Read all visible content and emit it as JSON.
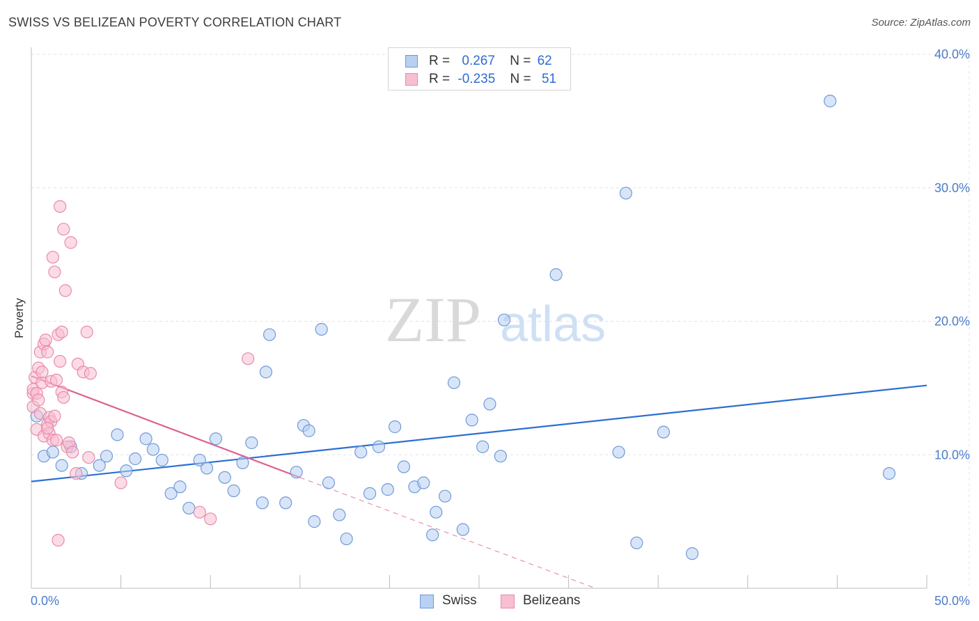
{
  "header": {
    "title": "SWISS VS BELIZEAN POVERTY CORRELATION CHART",
    "source": "Source: ZipAtlas.com"
  },
  "watermark": {
    "part1": "ZIP",
    "part2": "atlas"
  },
  "legend": {
    "swiss": {
      "r_label": "R =",
      "r_value": "0.267",
      "n_label": "N =",
      "n_value": "62"
    },
    "belizeans": {
      "r_label": "R =",
      "r_value": "-0.235",
      "n_label": "N =",
      "n_value": "51"
    }
  },
  "bottom_legend": {
    "swiss": "Swiss",
    "belizeans": "Belizeans"
  },
  "colors": {
    "swiss_fill": "#b8d0f2",
    "swiss_stroke": "#6f9ad8",
    "swiss_line": "#2b6fd1",
    "belize_fill": "#f7bfd1",
    "belize_stroke": "#e98aaa",
    "belize_line": "#e06090",
    "tick_text": "#4a7cc9",
    "grid": "#e3e3e3"
  },
  "chart_data": {
    "type": "scatter",
    "title": "SWISS VS BELIZEAN POVERTY CORRELATION CHART",
    "xlabel": "",
    "ylabel": "Poverty",
    "xlim": [
      0,
      50
    ],
    "ylim": [
      0,
      40
    ],
    "x_tick_labels": [
      "0.0%",
      "50.0%"
    ],
    "y_ticks": [
      {
        "value": 10,
        "label": "10.0%"
      },
      {
        "value": 20,
        "label": "20.0%"
      },
      {
        "value": 30,
        "label": "30.0%"
      },
      {
        "value": 40,
        "label": "40.0%"
      }
    ],
    "grid": true,
    "legend_position": "top-center",
    "series": [
      {
        "name": "Swiss",
        "points": [
          [
            0.3,
            12.9
          ],
          [
            0.7,
            9.9
          ],
          [
            1.2,
            10.2
          ],
          [
            1.7,
            9.2
          ],
          [
            2.2,
            10.6
          ],
          [
            2.8,
            8.6
          ],
          [
            3.8,
            9.2
          ],
          [
            4.2,
            9.9
          ],
          [
            4.8,
            11.5
          ],
          [
            5.3,
            8.8
          ],
          [
            5.8,
            9.7
          ],
          [
            6.4,
            11.2
          ],
          [
            6.8,
            10.4
          ],
          [
            7.3,
            9.6
          ],
          [
            7.8,
            7.1
          ],
          [
            8.3,
            7.6
          ],
          [
            8.8,
            6.0
          ],
          [
            9.4,
            9.6
          ],
          [
            9.8,
            9.0
          ],
          [
            10.3,
            11.2
          ],
          [
            10.8,
            8.3
          ],
          [
            11.3,
            7.3
          ],
          [
            11.8,
            9.4
          ],
          [
            12.3,
            10.9
          ],
          [
            12.9,
            6.4
          ],
          [
            13.1,
            16.2
          ],
          [
            13.3,
            19.0
          ],
          [
            14.2,
            6.4
          ],
          [
            14.8,
            8.7
          ],
          [
            15.2,
            12.2
          ],
          [
            15.5,
            11.8
          ],
          [
            15.8,
            5.0
          ],
          [
            16.2,
            19.4
          ],
          [
            16.6,
            7.9
          ],
          [
            17.2,
            5.5
          ],
          [
            17.6,
            3.7
          ],
          [
            18.4,
            10.2
          ],
          [
            18.9,
            7.1
          ],
          [
            19.4,
            10.6
          ],
          [
            19.9,
            7.4
          ],
          [
            20.3,
            12.1
          ],
          [
            20.8,
            9.1
          ],
          [
            21.4,
            7.6
          ],
          [
            21.9,
            7.9
          ],
          [
            22.4,
            4.0
          ],
          [
            22.6,
            5.7
          ],
          [
            23.1,
            6.9
          ],
          [
            23.6,
            15.4
          ],
          [
            24.1,
            4.4
          ],
          [
            24.6,
            12.6
          ],
          [
            25.2,
            10.6
          ],
          [
            25.6,
            13.8
          ],
          [
            26.2,
            9.9
          ],
          [
            26.4,
            20.1
          ],
          [
            29.3,
            23.5
          ],
          [
            32.8,
            10.2
          ],
          [
            33.2,
            29.6
          ],
          [
            33.8,
            3.4
          ],
          [
            35.3,
            11.7
          ],
          [
            36.9,
            2.6
          ],
          [
            44.6,
            36.5
          ],
          [
            47.9,
            8.6
          ]
        ]
      },
      {
        "name": "Belizeans",
        "points": [
          [
            0.1,
            14.6
          ],
          [
            0.1,
            13.6
          ],
          [
            0.1,
            14.9
          ],
          [
            0.2,
            15.8
          ],
          [
            0.3,
            14.6
          ],
          [
            0.3,
            11.9
          ],
          [
            0.4,
            16.5
          ],
          [
            0.4,
            14.1
          ],
          [
            0.5,
            13.1
          ],
          [
            0.5,
            17.7
          ],
          [
            0.6,
            15.4
          ],
          [
            0.6,
            16.2
          ],
          [
            0.7,
            11.4
          ],
          [
            0.7,
            18.3
          ],
          [
            0.8,
            18.6
          ],
          [
            0.9,
            17.7
          ],
          [
            0.9,
            12.3
          ],
          [
            1.0,
            11.6
          ],
          [
            1.0,
            12.8
          ],
          [
            1.1,
            15.5
          ],
          [
            1.1,
            12.5
          ],
          [
            1.2,
            24.8
          ],
          [
            1.2,
            11.1
          ],
          [
            1.3,
            23.7
          ],
          [
            1.4,
            15.6
          ],
          [
            1.4,
            11.1
          ],
          [
            1.5,
            19.0
          ],
          [
            1.5,
            3.6
          ],
          [
            1.6,
            17.0
          ],
          [
            1.6,
            28.6
          ],
          [
            1.7,
            19.2
          ],
          [
            1.7,
            14.7
          ],
          [
            1.8,
            14.3
          ],
          [
            1.8,
            26.9
          ],
          [
            1.9,
            22.3
          ],
          [
            2.0,
            10.6
          ],
          [
            2.1,
            10.9
          ],
          [
            2.2,
            25.9
          ],
          [
            2.3,
            10.2
          ],
          [
            2.5,
            8.6
          ],
          [
            2.6,
            16.8
          ],
          [
            2.9,
            16.2
          ],
          [
            3.1,
            19.2
          ],
          [
            3.2,
            9.8
          ],
          [
            3.3,
            16.1
          ],
          [
            5.0,
            7.9
          ],
          [
            9.4,
            5.7
          ],
          [
            10.0,
            5.2
          ],
          [
            12.1,
            17.2
          ],
          [
            1.3,
            12.9
          ],
          [
            0.9,
            12.0
          ]
        ]
      }
    ],
    "trendlines": [
      {
        "series": "Swiss",
        "x": [
          0,
          50
        ],
        "y": [
          8.0,
          15.2
        ],
        "style": "solid"
      },
      {
        "series": "Belizeans",
        "x": [
          0,
          15
        ],
        "y": [
          15.9,
          8.3
        ],
        "style": "solid"
      },
      {
        "series": "Belizeans",
        "x": [
          15,
          31.5
        ],
        "y": [
          8.3,
          0.0
        ],
        "style": "dashed"
      }
    ]
  }
}
